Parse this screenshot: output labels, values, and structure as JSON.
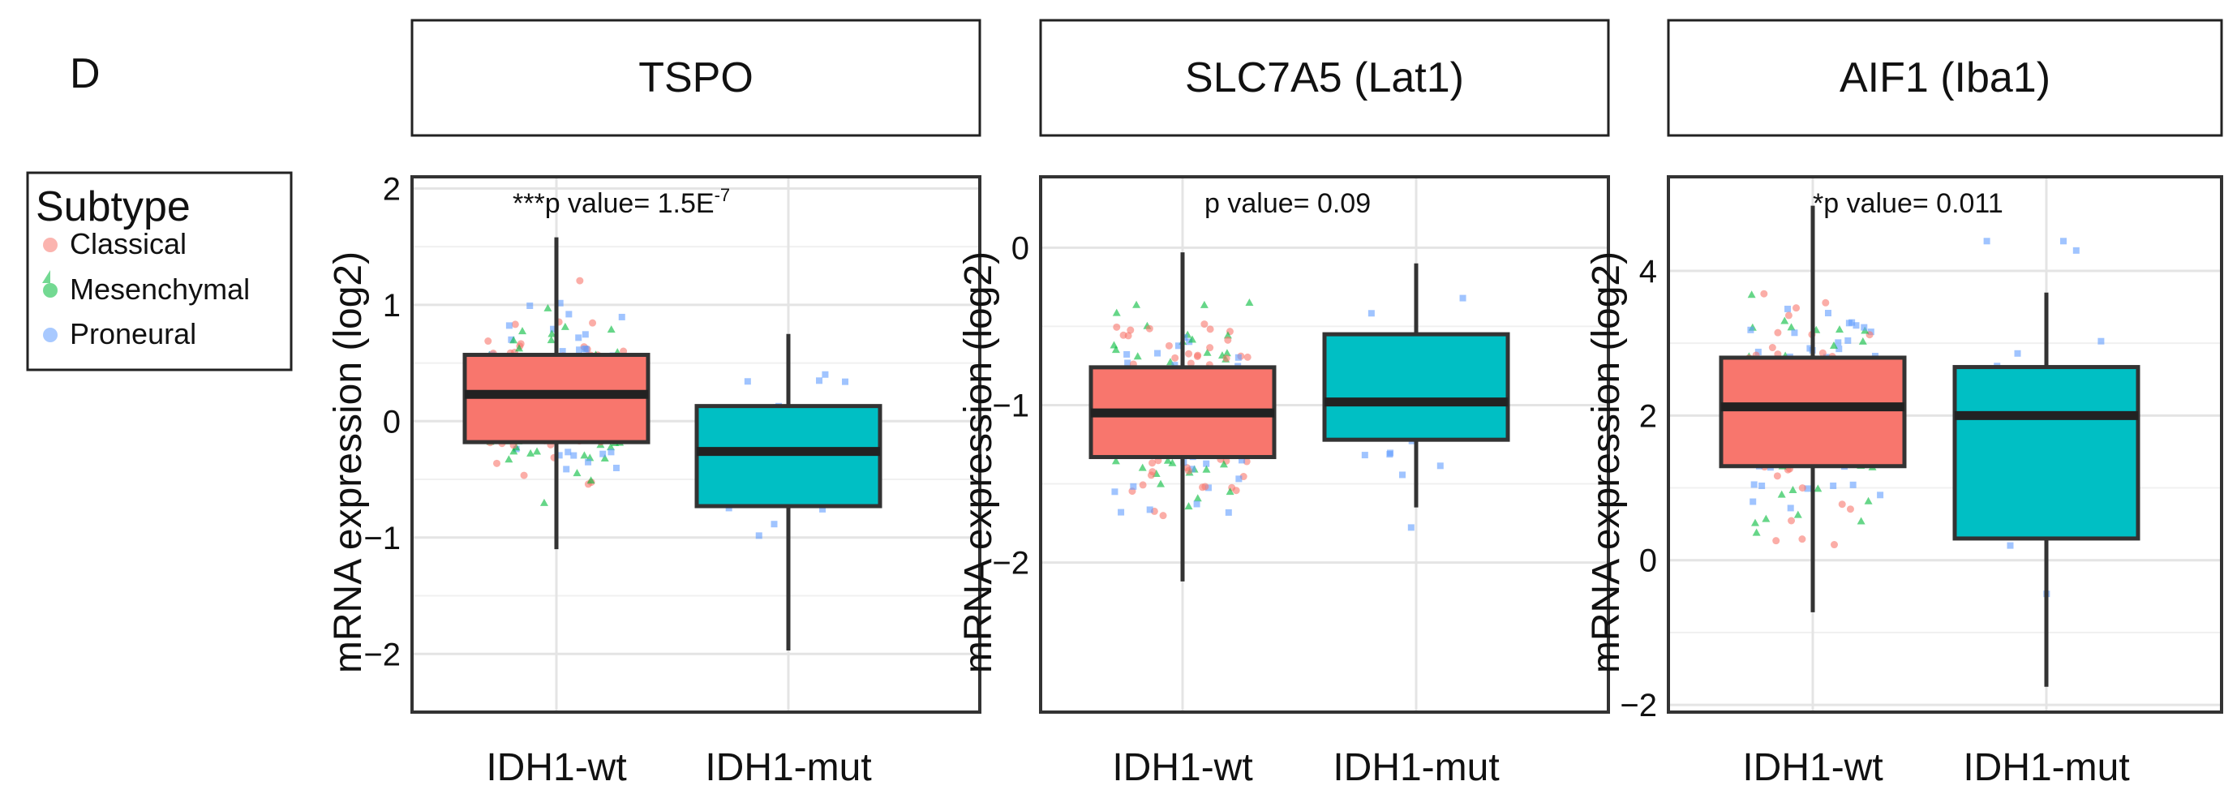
{
  "figure": {
    "panel_label": "D"
  },
  "legend": {
    "title": "Subtype",
    "items": [
      {
        "label": "Classical",
        "color": "#F8766D"
      },
      {
        "label": "Mesenchymal",
        "color": "#00BA38"
      },
      {
        "label": "Proneural",
        "color": "#619CFF"
      }
    ]
  },
  "colors": {
    "wt_box": "#F8766D",
    "mut_box": "#00BFC4",
    "box_stroke": "#333333",
    "grid": "#E4E4E4"
  },
  "chart_data": [
    {
      "type": "box",
      "title": "TSPO",
      "ylabel": "mRNA expression (log2)",
      "xlabel": "",
      "categories": [
        "IDH1-wt",
        "IDH1-mut"
      ],
      "ylim": [
        -2.5,
        2.1
      ],
      "yticks": [
        -2,
        -1,
        0,
        1,
        2
      ],
      "yticklabels": [
        "−2",
        "−1",
        "0",
        "1",
        "2"
      ],
      "annotation": {
        "prefix": "***p value= 1.5E",
        "superscript": "-7"
      },
      "boxes": [
        {
          "category": "IDH1-wt",
          "min": -1.1,
          "q1": -0.18,
          "median": 0.23,
          "q3": 0.57,
          "max": 1.58
        },
        {
          "category": "IDH1-mut",
          "min": -1.97,
          "q1": -0.73,
          "median": -0.26,
          "q3": 0.13,
          "max": 0.75
        }
      ]
    },
    {
      "type": "box",
      "title": "SLC7A5 (Lat1)",
      "ylabel": "mRNA expression (log2)",
      "xlabel": "",
      "categories": [
        "IDH1-wt",
        "IDH1-mut"
      ],
      "ylim": [
        -2.95,
        0.45
      ],
      "yticks": [
        -2,
        -1,
        0
      ],
      "yticklabels": [
        "−2",
        "−1",
        "0"
      ],
      "annotation": {
        "prefix": "p value= 0.09",
        "superscript": ""
      },
      "boxes": [
        {
          "category": "IDH1-wt",
          "min": -2.12,
          "q1": -1.33,
          "median": -1.05,
          "q3": -0.76,
          "max": -0.03
        },
        {
          "category": "IDH1-mut",
          "min": -1.65,
          "q1": -1.22,
          "median": -0.98,
          "q3": -0.55,
          "max": -0.1
        }
      ]
    },
    {
      "type": "box",
      "title": "AIF1 (Iba1)",
      "ylabel": "mRNA expression (log2)",
      "xlabel": "",
      "categories": [
        "IDH1-wt",
        "IDH1-mut"
      ],
      "ylim": [
        -2.1,
        5.3
      ],
      "yticks": [
        -2,
        0,
        2,
        4
      ],
      "yticklabels": [
        "−2",
        "0",
        "2",
        "4"
      ],
      "annotation": {
        "prefix": "*p value= 0.011",
        "superscript": ""
      },
      "boxes": [
        {
          "category": "IDH1-wt",
          "min": -0.72,
          "q1": 1.3,
          "median": 2.12,
          "q3": 2.8,
          "max": 4.9
        },
        {
          "category": "IDH1-mut",
          "min": -1.75,
          "q1": 0.3,
          "median": 2.0,
          "q3": 2.67,
          "max": 3.7
        }
      ]
    }
  ]
}
